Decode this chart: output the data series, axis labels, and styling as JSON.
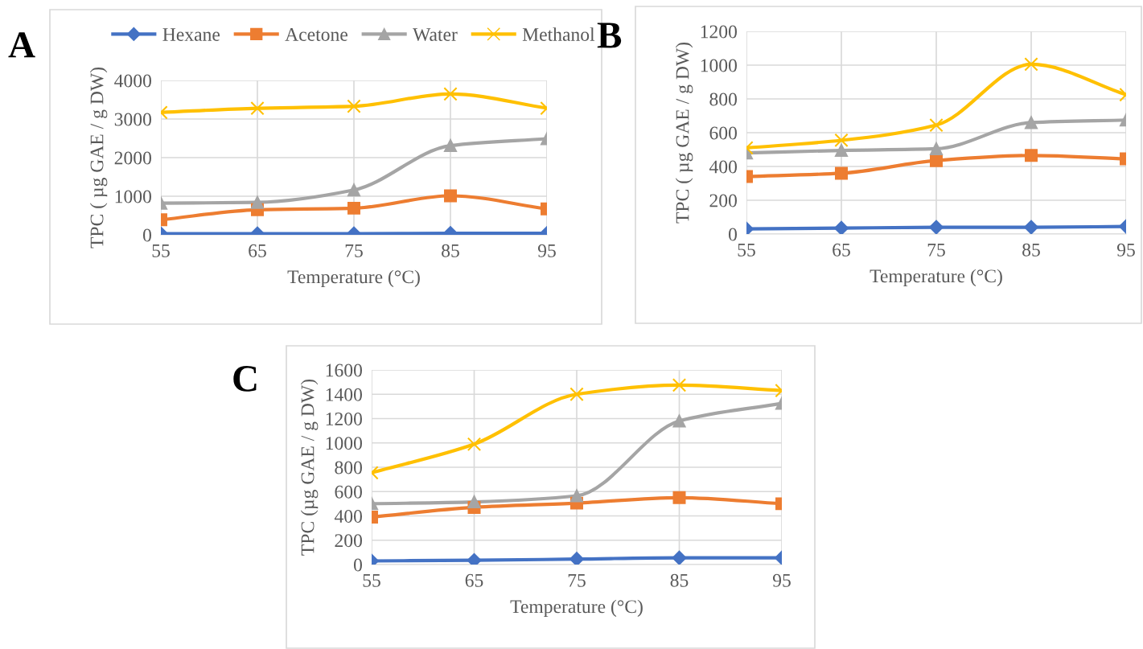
{
  "chart_data": [
    {
      "type": "line",
      "title": "A",
      "xlabel": "Temperature (°C)",
      "ylabel": "TPC ( µg GAE / g DW)",
      "x": [
        55,
        65,
        75,
        85,
        95
      ],
      "xlim": [
        55,
        95
      ],
      "xticks": [
        55,
        65,
        75,
        85,
        95
      ],
      "ylim": [
        0,
        4000
      ],
      "yticks": [
        0,
        1000,
        2000,
        3000,
        4000
      ],
      "grid": true,
      "legend": "top",
      "series": [
        {
          "name": "Hexane",
          "color": "#4472c4",
          "marker": "diamond",
          "values": [
            30,
            30,
            30,
            40,
            40
          ]
        },
        {
          "name": "Acetone",
          "color": "#ed7d31",
          "marker": "square",
          "values": [
            390,
            650,
            690,
            1010,
            670
          ]
        },
        {
          "name": "Water",
          "color": "#a5a5a5",
          "marker": "triangle",
          "values": [
            820,
            840,
            1160,
            2310,
            2490
          ]
        },
        {
          "name": "Methanol",
          "color": "#ffc000",
          "marker": "cross",
          "values": [
            3170,
            3280,
            3330,
            3650,
            3280
          ]
        }
      ]
    },
    {
      "type": "line",
      "title": "B",
      "xlabel": "Temperature (°C)",
      "ylabel": "TPC ( µg GAE / g DW)",
      "x": [
        55,
        65,
        75,
        85,
        95
      ],
      "xlim": [
        55,
        95
      ],
      "xticks": [
        55,
        65,
        75,
        85,
        95
      ],
      "ylim": [
        0,
        1200
      ],
      "yticks": [
        0,
        200,
        400,
        600,
        800,
        1000,
        1200
      ],
      "grid": true,
      "series": [
        {
          "color": "#4472c4",
          "marker": "diamond",
          "values": [
            30,
            35,
            40,
            40,
            45
          ]
        },
        {
          "color": "#ed7d31",
          "marker": "square",
          "values": [
            340,
            360,
            435,
            465,
            445
          ]
        },
        {
          "color": "#a5a5a5",
          "marker": "triangle",
          "values": [
            480,
            495,
            505,
            660,
            675
          ]
        },
        {
          "color": "#ffc000",
          "marker": "cross",
          "values": [
            510,
            555,
            645,
            1005,
            825
          ]
        }
      ]
    },
    {
      "type": "line",
      "title": "C",
      "xlabel": "Temperature (°C)",
      "ylabel": "TPC (µg GAE / g DW)",
      "x": [
        55,
        65,
        75,
        85,
        95
      ],
      "xlim": [
        55,
        95
      ],
      "xticks": [
        55,
        65,
        75,
        85,
        95
      ],
      "ylim": [
        0,
        1600
      ],
      "yticks": [
        0,
        200,
        400,
        600,
        800,
        1000,
        1200,
        1400,
        1600
      ],
      "grid": true,
      "series": [
        {
          "color": "#4472c4",
          "marker": "diamond",
          "values": [
            30,
            35,
            45,
            55,
            55
          ]
        },
        {
          "color": "#ed7d31",
          "marker": "square",
          "values": [
            390,
            470,
            505,
            550,
            500
          ]
        },
        {
          "color": "#a5a5a5",
          "marker": "triangle",
          "values": [
            500,
            515,
            565,
            1180,
            1325
          ]
        },
        {
          "color": "#ffc000",
          "marker": "cross",
          "values": [
            755,
            990,
            1400,
            1475,
            1430
          ]
        }
      ]
    }
  ]
}
